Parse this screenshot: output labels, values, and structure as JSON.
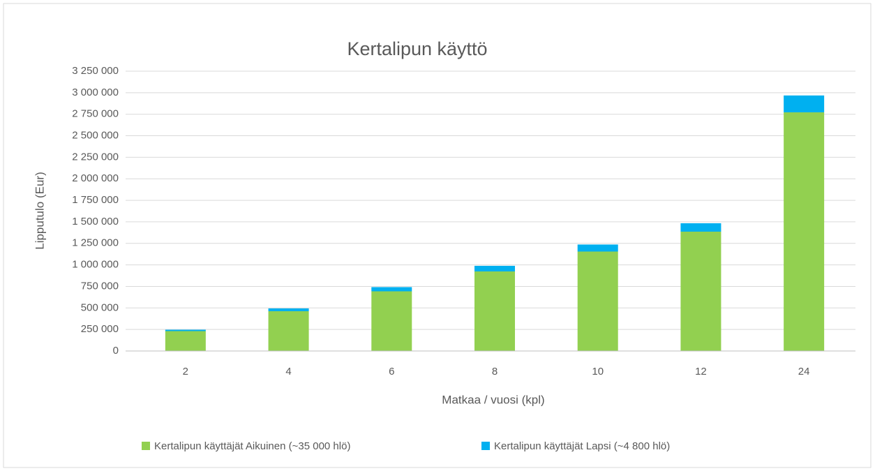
{
  "chart_data": {
    "type": "stacked_bar",
    "title": "Kertalipun käyttö",
    "x_label": "Matkaa / vuosi (kpl)",
    "y_label": "Lipputulo (Eur)",
    "categories": [
      "2",
      "4",
      "6",
      "8",
      "10",
      "12",
      "24"
    ],
    "series": [
      {
        "name": "Kertalipun käyttäjät Aikuinen (~35 000 hlö)",
        "color": "#92d050",
        "values": [
          231000,
          462000,
          693000,
          924000,
          1155000,
          1386000,
          2772000
        ]
      },
      {
        "name": "Kertalipun käyttäjät Lapsi (~4 800 hlö)",
        "color": "#00b0f0",
        "values": [
          16320,
          32640,
          48960,
          65280,
          81600,
          97920,
          195840
        ]
      }
    ],
    "ylim": [
      0,
      3250000
    ],
    "yticks": [
      0,
      {
        "value": 250000,
        "label": "250 000"
      },
      {
        "value": 500000,
        "label": "500 000"
      },
      {
        "value": 750000,
        "label": "750 000"
      },
      {
        "value": 1000000,
        "label": "1 000 000"
      },
      {
        "value": 1250000,
        "label": "1 250 000"
      },
      {
        "value": 1500000,
        "label": "1 500 000"
      },
      {
        "value": 1750000,
        "label": "1 750 000"
      },
      {
        "value": 2000000,
        "label": "2 000 000"
      },
      {
        "value": 2250000,
        "label": "2 250 000"
      },
      {
        "value": 2500000,
        "label": "2 500 000"
      },
      {
        "value": 2750000,
        "label": "2 750 000"
      },
      {
        "value": 3000000,
        "label": "3 000 000"
      },
      {
        "value": 3250000,
        "label": "3 250 000"
      }
    ],
    "grid": true,
    "legend": "bottom"
  }
}
